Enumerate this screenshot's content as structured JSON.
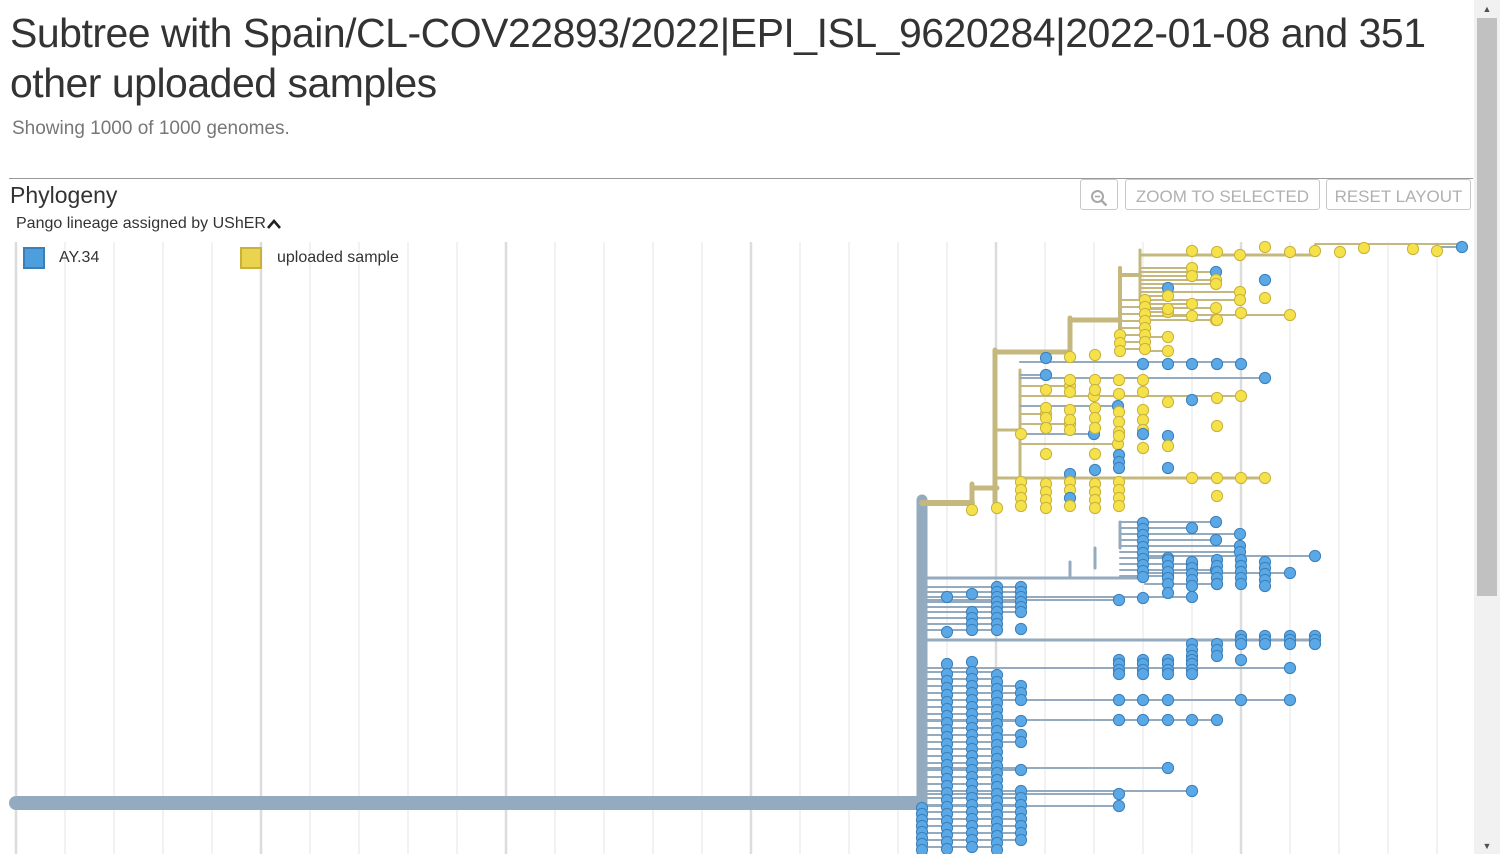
{
  "header": {
    "title": "Subtree with Spain/CL-COV22893/2022|EPI_ISL_9620284|2022-01-08 and 351 other uploaded samples",
    "subtitle": "Showing 1000 of 1000 genomes."
  },
  "phylogeny": {
    "section_title": "Phylogeny",
    "zoom_icon": "zoom-magnifier-icon",
    "zoom_selected_label": "ZOOM TO SELECTED",
    "reset_layout_label": "RESET LAYOUT",
    "color_by_label": "Pango lineage assigned by UShER",
    "color_by_icon": "chevron-up-icon",
    "legend": [
      {
        "label": "AY.34",
        "color": "#4c9fdc",
        "border": "#3c7fb6"
      },
      {
        "label": "uploaded sample",
        "color": "#ead34e",
        "border": "#c9b13a"
      }
    ],
    "colors": {
      "blue_branch": "#93aabf",
      "yellow_branch": "#c4b87f",
      "blue_tip": "#5aa8e6",
      "yellow_tip": "#f5e14a",
      "grid": "#e4e4e4"
    }
  }
}
